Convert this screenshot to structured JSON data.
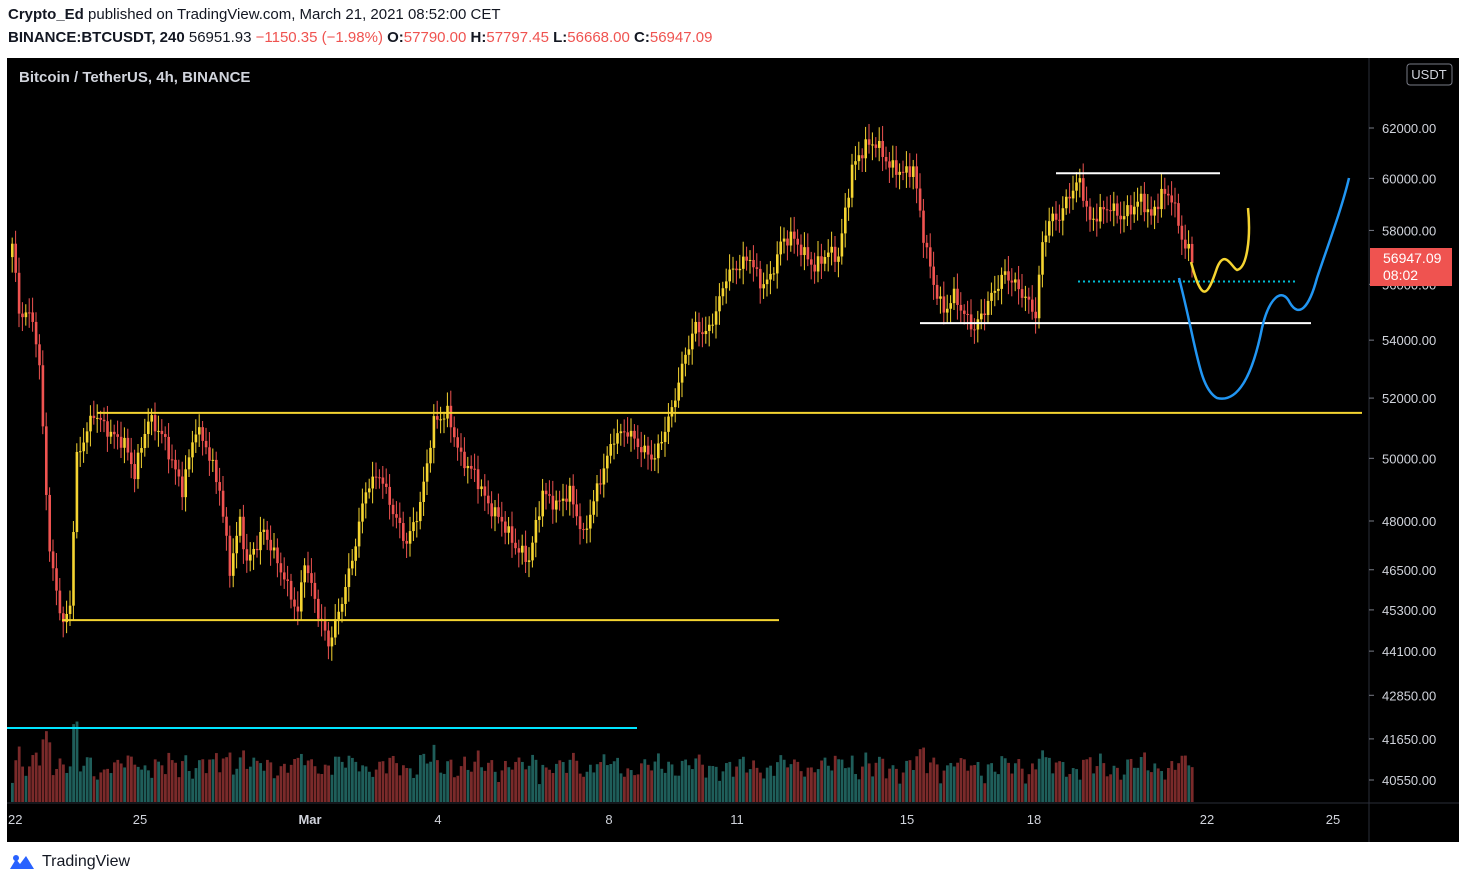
{
  "header": {
    "author": "Crypto_Ed",
    "published": "published on TradingView.com, March 21, 2021 08:52:00 CET",
    "symbol": "BINANCE:BTCUSDT, 240",
    "last": "56951.93",
    "change": "−1150.35 (−1.98%)",
    "o_label": "O:",
    "o_value": "57790.00",
    "h_label": "H:",
    "h_value": "57797.45",
    "l_label": "L:",
    "l_value": "56668.00",
    "c_label": "C:",
    "c_value": "56947.09"
  },
  "footer": {
    "brand": "TradingView"
  },
  "colors": {
    "up": "#f5d431",
    "down": "#ef5350",
    "vol_up": "#1f5e5a",
    "vol_down": "#7a2a2a",
    "background": "#000000",
    "price_tag": "#ef5350"
  },
  "chart_data": {
    "type": "candlestick",
    "title": "Bitcoin / TetherUS, 4h, BINANCE",
    "currency": "USDT",
    "current_price": "56947.09",
    "countdown": "08:02",
    "y_ticks": [
      "62000.00",
      "60000.00",
      "58000.00",
      "56000.00",
      "54000.00",
      "52000.00",
      "50000.00",
      "48000.00",
      "46500.00",
      "45300.00",
      "44100.00",
      "42850.00",
      "41650.00",
      "40550.00"
    ],
    "y_scale": "log",
    "x_ticks": [
      "22",
      "25",
      "Mar",
      "4",
      "8",
      "11",
      "15",
      "18",
      "22",
      "25"
    ],
    "horizontal_levels": [
      51500,
      45000,
      54600,
      56100,
      60200
    ],
    "candles_sample": [
      {
        "date": "2021-02-21",
        "open": 57500,
        "close": 55300
      },
      {
        "date": "2021-02-23",
        "open": 54000,
        "close": 46000
      },
      {
        "date": "2021-02-28",
        "open": 45500,
        "close": 43500
      },
      {
        "date": "2021-03-03",
        "open": 49500,
        "close": 51800
      },
      {
        "date": "2021-03-08",
        "open": 50000,
        "close": 51500
      },
      {
        "date": "2021-03-11",
        "open": 55000,
        "close": 57500
      },
      {
        "date": "2021-03-13",
        "open": 59000,
        "close": 61500
      },
      {
        "date": "2021-03-15",
        "open": 58500,
        "close": 55000
      },
      {
        "date": "2021-03-18",
        "open": 57500,
        "close": 59500
      },
      {
        "date": "2021-03-21",
        "open": 57790,
        "close": 56947
      }
    ]
  }
}
